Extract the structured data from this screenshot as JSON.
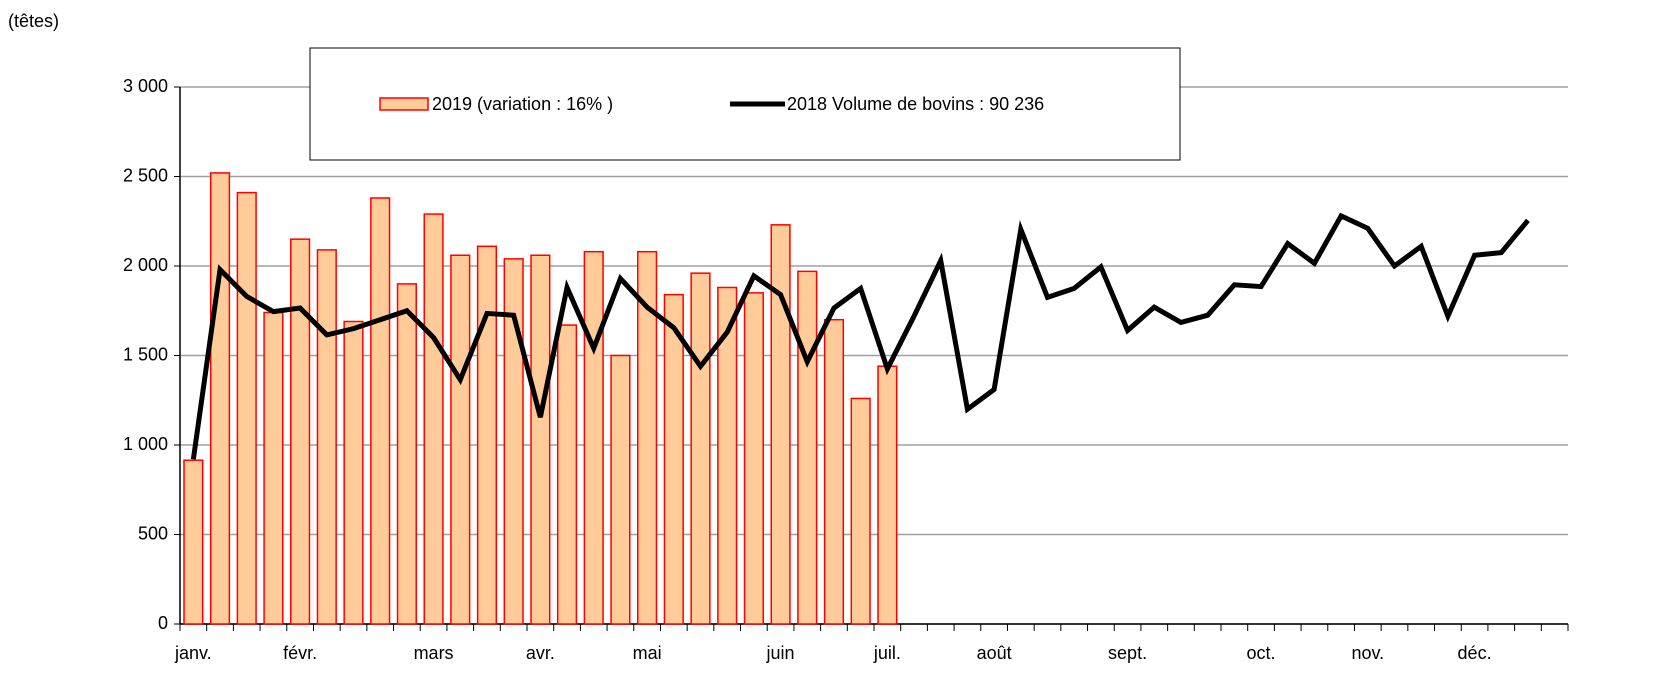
{
  "chart_data": {
    "type": "bar_line",
    "y_label": "(têtes)",
    "categories": [
      "janv.",
      null,
      null,
      null,
      "févr.",
      null,
      null,
      null,
      null,
      "mars",
      null,
      null,
      null,
      "avr.",
      null,
      null,
      null,
      "mai",
      null,
      null,
      null,
      null,
      "juin",
      null,
      null,
      null,
      "juil.",
      null,
      null,
      null,
      "août",
      null,
      null,
      null,
      null,
      "sept.",
      null,
      null,
      null,
      null,
      "oct.",
      null,
      null,
      null,
      "nov.",
      null,
      null,
      null,
      "déc.",
      null,
      null,
      null
    ],
    "series": [
      {
        "name": "2019 (variation : 16% )",
        "type": "bar",
        "color": "#ffcc99",
        "edge_color": "#ff0000",
        "values": [
          915,
          2520,
          2410,
          1740,
          2150,
          2090,
          1690,
          2380,
          1900,
          2290,
          2060,
          2110,
          2040,
          2060,
          1670,
          2080,
          1500,
          2080,
          1840,
          1960,
          1880,
          1850,
          2230,
          1970,
          1700,
          1260,
          1440,
          null,
          null,
          null,
          null,
          null,
          null,
          null,
          null,
          null,
          null,
          null,
          null,
          null,
          null,
          null,
          null,
          null,
          null,
          null,
          null,
          null,
          null,
          null,
          null,
          null
        ]
      },
      {
        "name": "2018 Volume de bovins :  90 236",
        "type": "line",
        "color": "#000000",
        "values": [
          920,
          1980,
          1830,
          1745,
          1765,
          1615,
          1650,
          1700,
          1750,
          1600,
          1365,
          1735,
          1725,
          1155,
          1880,
          1540,
          1930,
          1770,
          1655,
          1440,
          1630,
          1945,
          1840,
          1465,
          1765,
          1875,
          1425,
          1720,
          2030,
          1200,
          1310,
          2205,
          1825,
          1875,
          1995,
          1640,
          1770,
          1685,
          1725,
          1895,
          1885,
          2125,
          2015,
          2280,
          2210,
          2000,
          2110,
          1720,
          2060,
          2075,
          2255,
          null
        ]
      }
    ],
    "ylim": [
      0,
      3000
    ],
    "yticks": [
      0,
      500,
      {
        "value": 1000,
        "label": "1 000"
      },
      {
        "value": 1500,
        "label": "1 500"
      },
      {
        "value": 2000,
        "label": "2 000"
      },
      {
        "value": 2500,
        "label": "2 500"
      },
      {
        "value": 3000,
        "label": "3 000"
      }
    ],
    "grid": true,
    "legend": "top"
  }
}
